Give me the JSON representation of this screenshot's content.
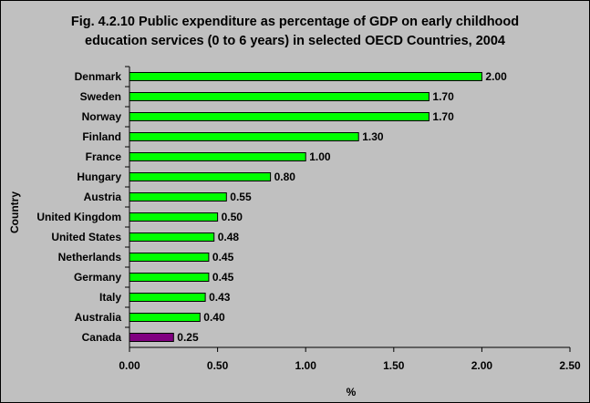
{
  "chart_data": {
    "type": "bar",
    "orientation": "horizontal",
    "title": "Fig. 4.2.10 Public expenditure as percentage of GDP on early childhood education services (0 to 6 years) in selected OECD Countries, 2004",
    "title_lines": [
      "Fig. 4.2.10 Public expenditure as percentage of GDP on early childhood",
      "education services (0 to 6 years) in selected OECD Countries, 2004"
    ],
    "xlabel": "%",
    "ylabel": "Country",
    "xlim": [
      0,
      2.5
    ],
    "xticks": [
      0.0,
      0.5,
      1.0,
      1.5,
      2.0,
      2.5
    ],
    "xtick_labels": [
      "0.00",
      "0.50",
      "1.00",
      "1.50",
      "2.00",
      "2.50"
    ],
    "grid": false,
    "legend": "none",
    "categories": [
      "Denmark",
      "Sweden",
      "Norway",
      "Finland",
      "France",
      "Hungary",
      "Austria",
      "United Kingdom",
      "United States",
      "Netherlands",
      "Germany",
      "Italy",
      "Australia",
      "Canada"
    ],
    "values": [
      2.0,
      1.7,
      1.7,
      1.3,
      1.0,
      0.8,
      0.55,
      0.5,
      0.48,
      0.45,
      0.45,
      0.43,
      0.4,
      0.25
    ],
    "value_labels": [
      "2.00",
      "1.70",
      "1.70",
      "1.30",
      "1.00",
      "0.80",
      "0.55",
      "0.50",
      "0.48",
      "0.45",
      "0.45",
      "0.43",
      "0.40",
      "0.25"
    ],
    "bar_color": "#00ff00",
    "highlight_category": "Canada",
    "highlight_color": "#800080",
    "plot_background": "#c0c0c0"
  }
}
